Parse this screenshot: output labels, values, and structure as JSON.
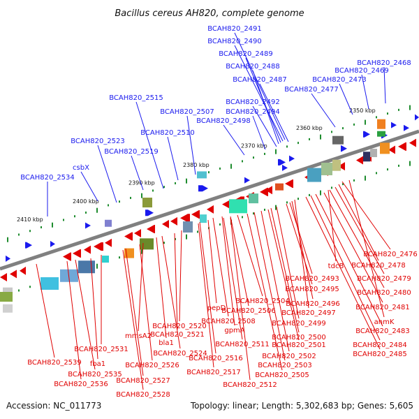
{
  "title": "Bacillus cereus AH820, complete genome",
  "footer": {
    "accession": "Accession: NC_011773",
    "stats": "Topology: linear; Length: 5,302,683 bp; Genes: 5,605"
  },
  "colors": {
    "backbone": "#808080",
    "forward_gene": "#1a1aee",
    "reverse_gene": "#e00000",
    "tick": "#1e8c2e"
  },
  "kbp_labels": [
    "2350 kbp",
    "2360 kbp",
    "2370 kbp",
    "2380 kbp",
    "2390 kbp",
    "2400 kbp",
    "2410 kbp"
  ],
  "top_genes": [
    "BCAH820_2491",
    "BCAH820_2490",
    "BCAH820_2489",
    "BCAH820_2488",
    "BCAH820_2487",
    "BCAH820_2468",
    "BCAH820_2469",
    "BCAH820_2473",
    "BCAH820_2477",
    "BCAH820_2515",
    "BCAH820_2492",
    "BCAH820_2494",
    "BCAH820_2507",
    "BCAH820_2498",
    "BCAH820_2510",
    "BCAH820_2523",
    "BCAH820_2519",
    "csbX",
    "BCAH820_2534"
  ],
  "bottom_genes": [
    "BCAH820_2476",
    "BCAH820_2478",
    "tdcB",
    "BCAH820_2479",
    "BCAH820_2493",
    "BCAH820_2495",
    "BCAH820_2480",
    "BCAH820_2504",
    "BCAH820_2496",
    "BCAH820_2481",
    "pepD",
    "BCAH820_2506",
    "BCAH820_2497",
    "BCAH820_2508",
    "BCAH820_2499",
    "anmK",
    "BCAH820_2520",
    "gpmA",
    "BCAH820_2483",
    "BCAH820_2521",
    "BCAH820_2500",
    "mmsA2",
    "bla1",
    "BCAH820_2511",
    "BCAH820_2501",
    "BCAH820_2484",
    "BCAH820_2531",
    "BCAH820_2524",
    "BCAH820_2516",
    "BCAH820_2502",
    "BCAH820_2485",
    "BCAH820_2539",
    "fba1",
    "BCAH820_2526",
    "BCAH820_2503",
    "BCAH820_2535",
    "BCAH820_2517",
    "BCAH820_2505",
    "BCAH820_2536",
    "BCAH820_2527",
    "BCAH820_2512",
    "BCAH820_2528"
  ]
}
